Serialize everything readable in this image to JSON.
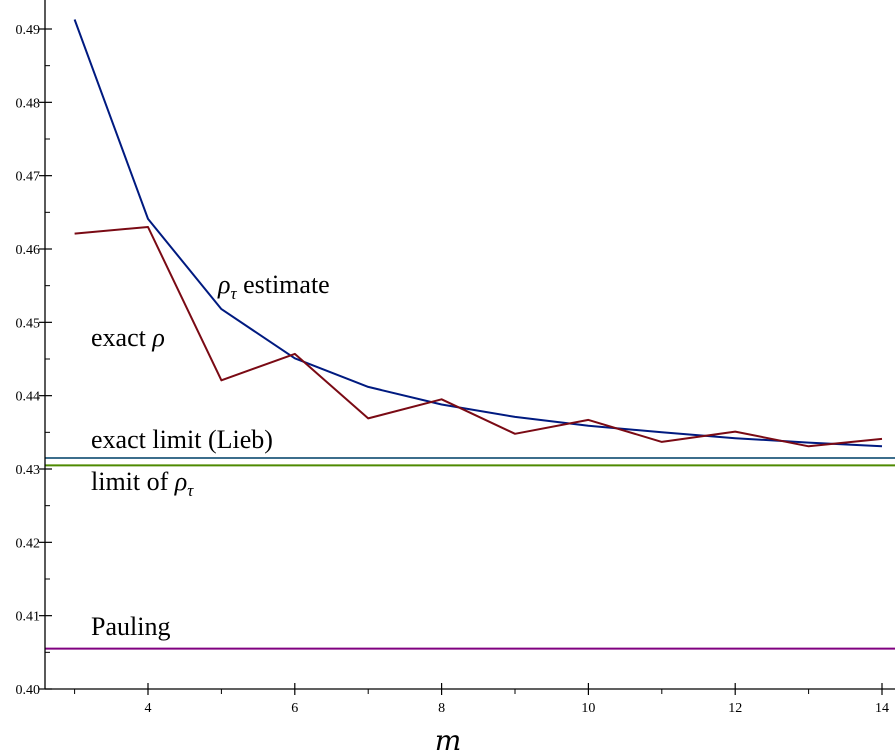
{
  "chart_data": {
    "type": "line",
    "title": "",
    "xlabel": "m",
    "ylabel": "",
    "xlim": [
      2.85,
      14.0
    ],
    "ylim": [
      0.4,
      0.4925
    ],
    "xticks": [
      4,
      6,
      8,
      10,
      12,
      14
    ],
    "yticks": [
      0.4,
      0.41,
      0.42,
      0.43,
      0.44,
      0.45,
      0.46,
      0.47,
      0.48,
      0.49
    ],
    "ytick_labels": [
      "0.40",
      "0.41",
      "0.42",
      "0.43",
      "0.44",
      "0.45",
      "0.46",
      "0.47",
      "0.48",
      "0.49"
    ],
    "grid": false,
    "series": [
      {
        "name": "ρτ estimate",
        "color": "#001a80",
        "x": [
          3,
          4,
          5,
          6,
          7,
          8,
          9,
          10,
          11,
          12,
          13,
          14
        ],
        "y": [
          0.4913,
          0.4641,
          0.4518,
          0.4451,
          0.4412,
          0.4388,
          0.4371,
          0.4359,
          0.435,
          0.4342,
          0.4336,
          0.4331
        ]
      },
      {
        "name": "exact ρ",
        "color": "#7a0a14",
        "x": [
          3,
          4,
          5,
          6,
          7,
          8,
          9,
          10,
          11,
          12,
          13,
          14
        ],
        "y": [
          0.4621,
          0.463,
          0.4421,
          0.4457,
          0.4369,
          0.4395,
          0.4348,
          0.4367,
          0.4337,
          0.4351,
          0.4331,
          0.4341
        ]
      }
    ],
    "hlines": [
      {
        "name": "exact limit (Lieb)",
        "color": "#3c6e8c",
        "y": 0.4315
      },
      {
        "name": "limit of ρτ",
        "color": "#4e8a00",
        "y": 0.4305
      },
      {
        "name": "Pauling",
        "color": "#800080",
        "y": 0.4055
      }
    ],
    "annotations": {
      "rho_tau_estimate": {
        "symbol": "ρ",
        "subscript": "τ",
        "text": " estimate"
      },
      "exact_rho": {
        "text": "exact ",
        "symbol": "ρ"
      },
      "exact_limit": {
        "text": "exact limit (Lieb)"
      },
      "limit_rho_tau": {
        "text": "limit of ",
        "symbol": "ρ",
        "subscript": "τ"
      },
      "pauling": {
        "text": "Pauling"
      }
    }
  }
}
